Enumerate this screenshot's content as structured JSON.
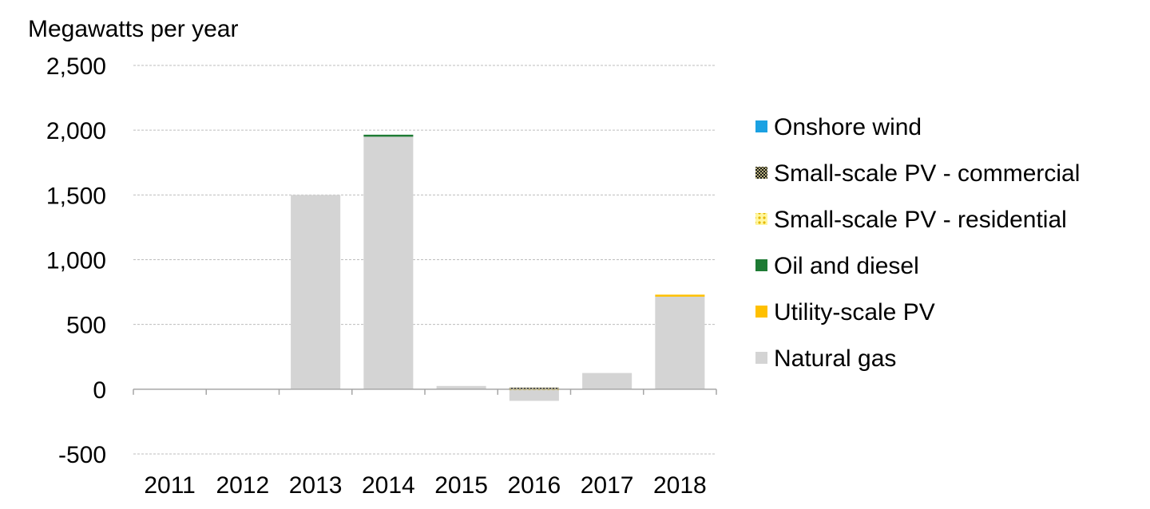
{
  "chart_data": {
    "type": "bar",
    "stacked": true,
    "ylabel": "Megawatts per year",
    "categories": [
      "2011",
      "2012",
      "2013",
      "2014",
      "2015",
      "2016",
      "2017",
      "2018"
    ],
    "ylim": [
      -500,
      2500
    ],
    "yticks": [
      -500,
      0,
      500,
      1000,
      1500,
      2000,
      2500
    ],
    "ytick_labels": [
      "-500",
      "0",
      "500",
      "1,000",
      "1,500",
      "2,000",
      "2,500"
    ],
    "grid": true,
    "legend_position": "right",
    "series": [
      {
        "name": "Natural gas",
        "color": "#d4d4d4",
        "pattern": "solid",
        "values": [
          0,
          0,
          1500,
          1950,
          25,
          -90,
          125,
          720
        ]
      },
      {
        "name": "Utility-scale PV",
        "color": "#ffc000",
        "pattern": "solid",
        "values": [
          0,
          0,
          0,
          0,
          0,
          0,
          0,
          10
        ]
      },
      {
        "name": "Oil and diesel",
        "color": "#1e7b34",
        "pattern": "solid",
        "values": [
          0,
          0,
          0,
          15,
          0,
          0,
          0,
          0
        ]
      },
      {
        "name": "Small-scale PV - residential",
        "color": "#ffe600",
        "pattern": "dots",
        "values": [
          0,
          0,
          0,
          0,
          0,
          8,
          0,
          0
        ]
      },
      {
        "name": "Small-scale PV - commercial",
        "color": "#4a4a2a",
        "pattern": "checker",
        "values": [
          0,
          0,
          0,
          0,
          0,
          4,
          0,
          0
        ]
      },
      {
        "name": "Onshore wind",
        "color": "#1ba1e2",
        "pattern": "solid",
        "values": [
          0,
          0,
          0,
          0,
          0,
          0,
          0,
          0
        ]
      }
    ],
    "legend_order": [
      "Onshore wind",
      "Small-scale PV - commercial",
      "Small-scale PV - residential",
      "Oil and diesel",
      "Utility-scale PV",
      "Natural gas"
    ]
  }
}
